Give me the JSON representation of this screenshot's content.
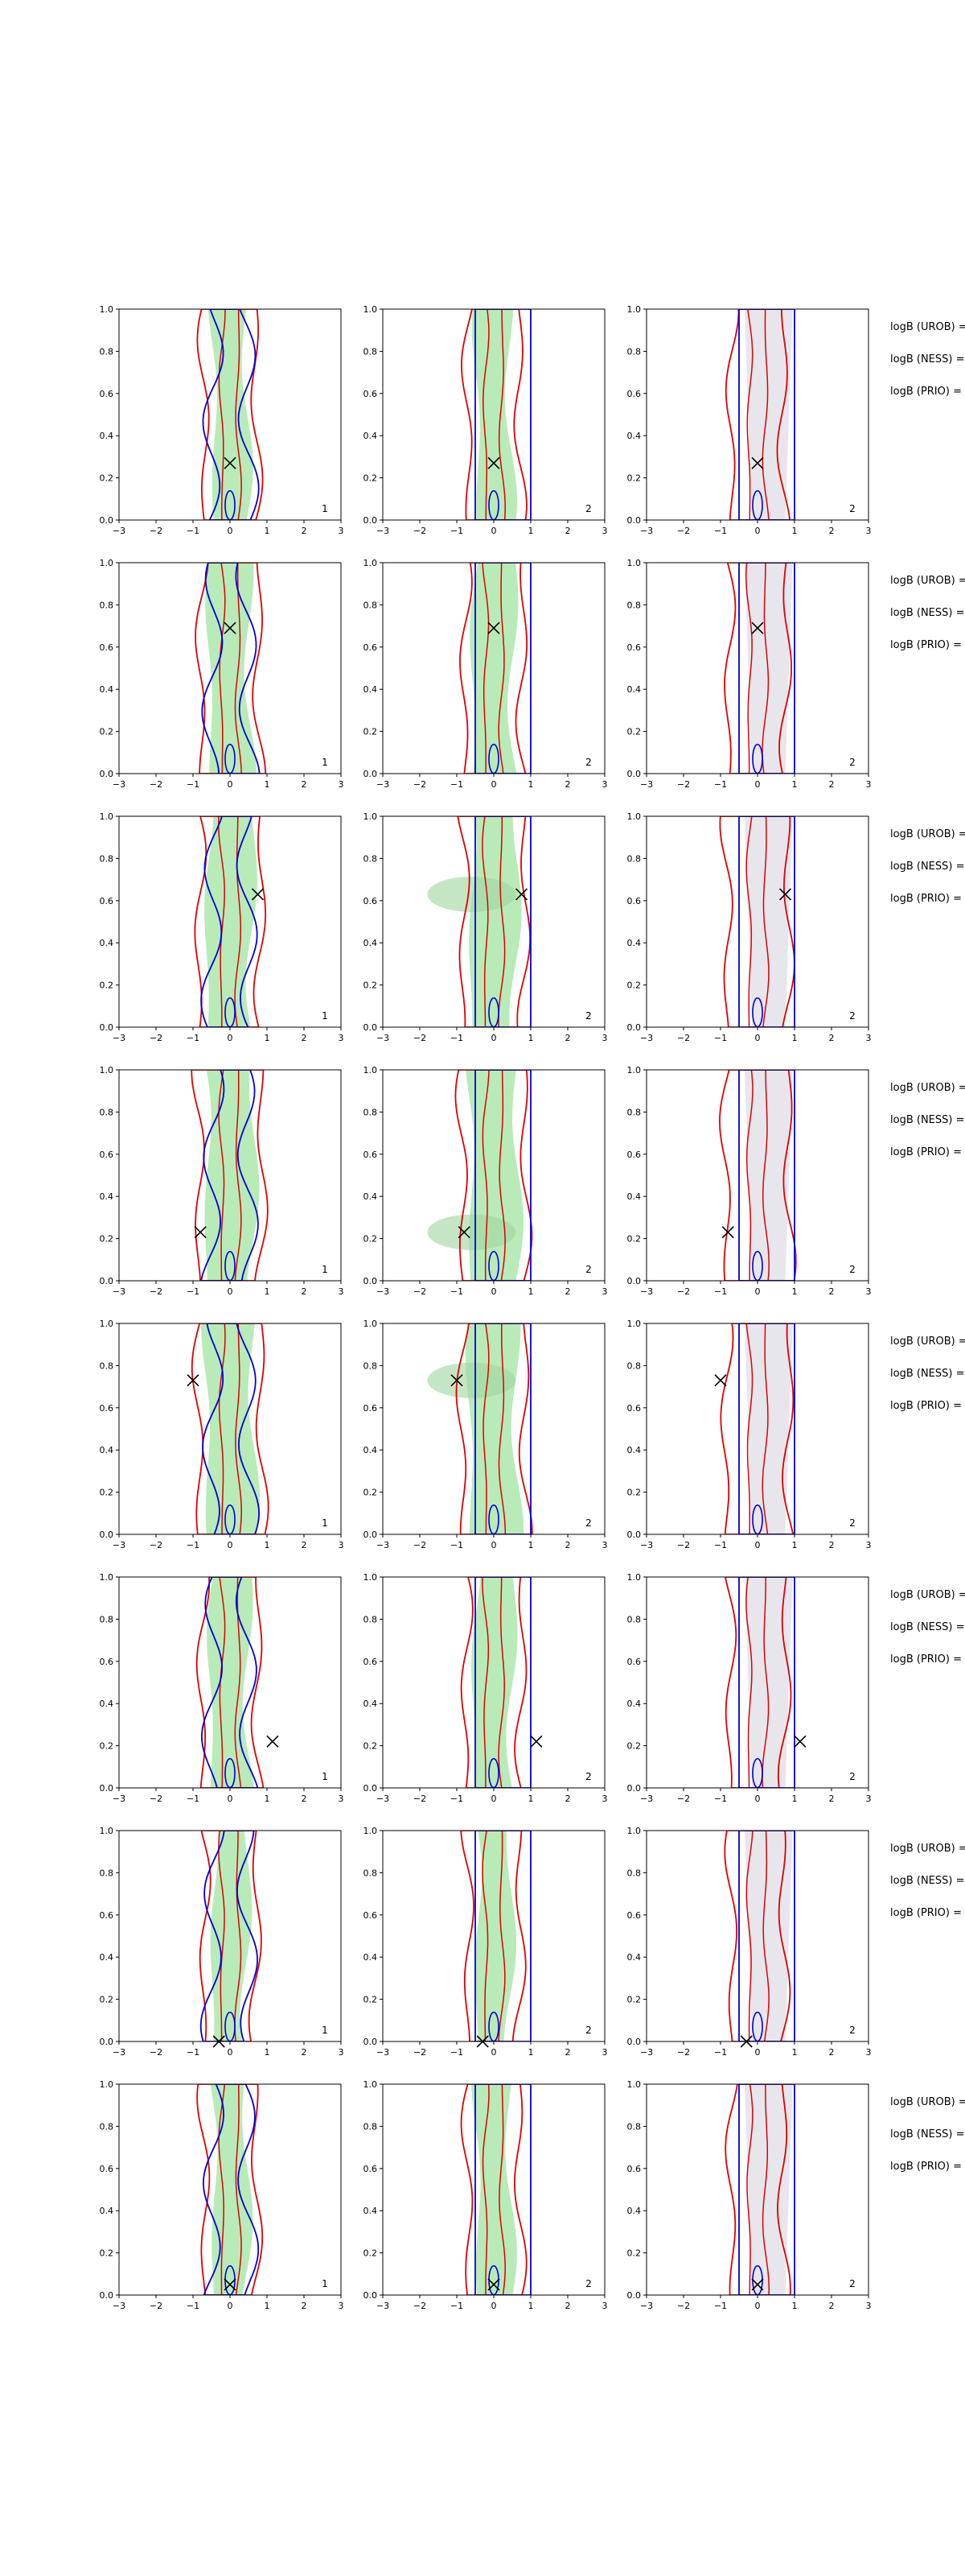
{
  "figure": {
    "rows": 8,
    "cols": 3,
    "xlim": [
      -3,
      3
    ],
    "ylim": [
      0,
      1
    ],
    "xticks": [
      -3,
      -2,
      -1,
      0,
      1,
      2,
      3
    ],
    "yticks": [
      0.0,
      0.2,
      0.4,
      0.6,
      0.8,
      1.0
    ],
    "xtick_labels": [
      "−3",
      "−2",
      "−1",
      "0",
      "1",
      "2",
      "3"
    ],
    "ytick_labels": [
      "0.0",
      "0.2",
      "0.4",
      "0.6",
      "0.8",
      "1.0"
    ],
    "panel_labels": [
      "1",
      "2",
      "2"
    ],
    "annotation_lines": [
      "logB (UROB) =",
      "logB (NESS) =",
      "logB (PRIO) ="
    ],
    "colors": {
      "fill_green": "#b8ebb8",
      "fill_green_dark": "#9fd69f",
      "fill_grey": "#e6e6ec",
      "contour_red": "#e00000",
      "contour_blue": "#0000dd",
      "marker": "#000000",
      "axis": "#000000"
    }
  },
  "chart_data": [
    {
      "type": "contour",
      "row": 1,
      "marker": {
        "x": 0.0,
        "y": 0.27
      },
      "spread": 0.0
    },
    {
      "type": "contour",
      "row": 2,
      "marker": {
        "x": 0.0,
        "y": 0.69
      },
      "spread": 0.15
    },
    {
      "type": "contour",
      "row": 3,
      "marker": {
        "x": 0.75,
        "y": 0.63
      },
      "spread": 0.25
    },
    {
      "type": "contour",
      "row": 4,
      "marker": {
        "x": -0.8,
        "y": 0.23
      },
      "spread": 0.3
    },
    {
      "type": "contour",
      "row": 5,
      "marker": {
        "x": -1.0,
        "y": 0.73
      },
      "spread": 0.3
    },
    {
      "type": "contour",
      "row": 6,
      "marker": {
        "x": 1.15,
        "y": 0.22
      },
      "spread": 0.1
    },
    {
      "type": "contour",
      "row": 7,
      "marker": {
        "x": -0.3,
        "y": 0.0
      },
      "spread": 0.0
    },
    {
      "type": "contour",
      "row": 8,
      "marker": {
        "x": 0.0,
        "y": 0.05
      },
      "spread": 0.0
    }
  ]
}
